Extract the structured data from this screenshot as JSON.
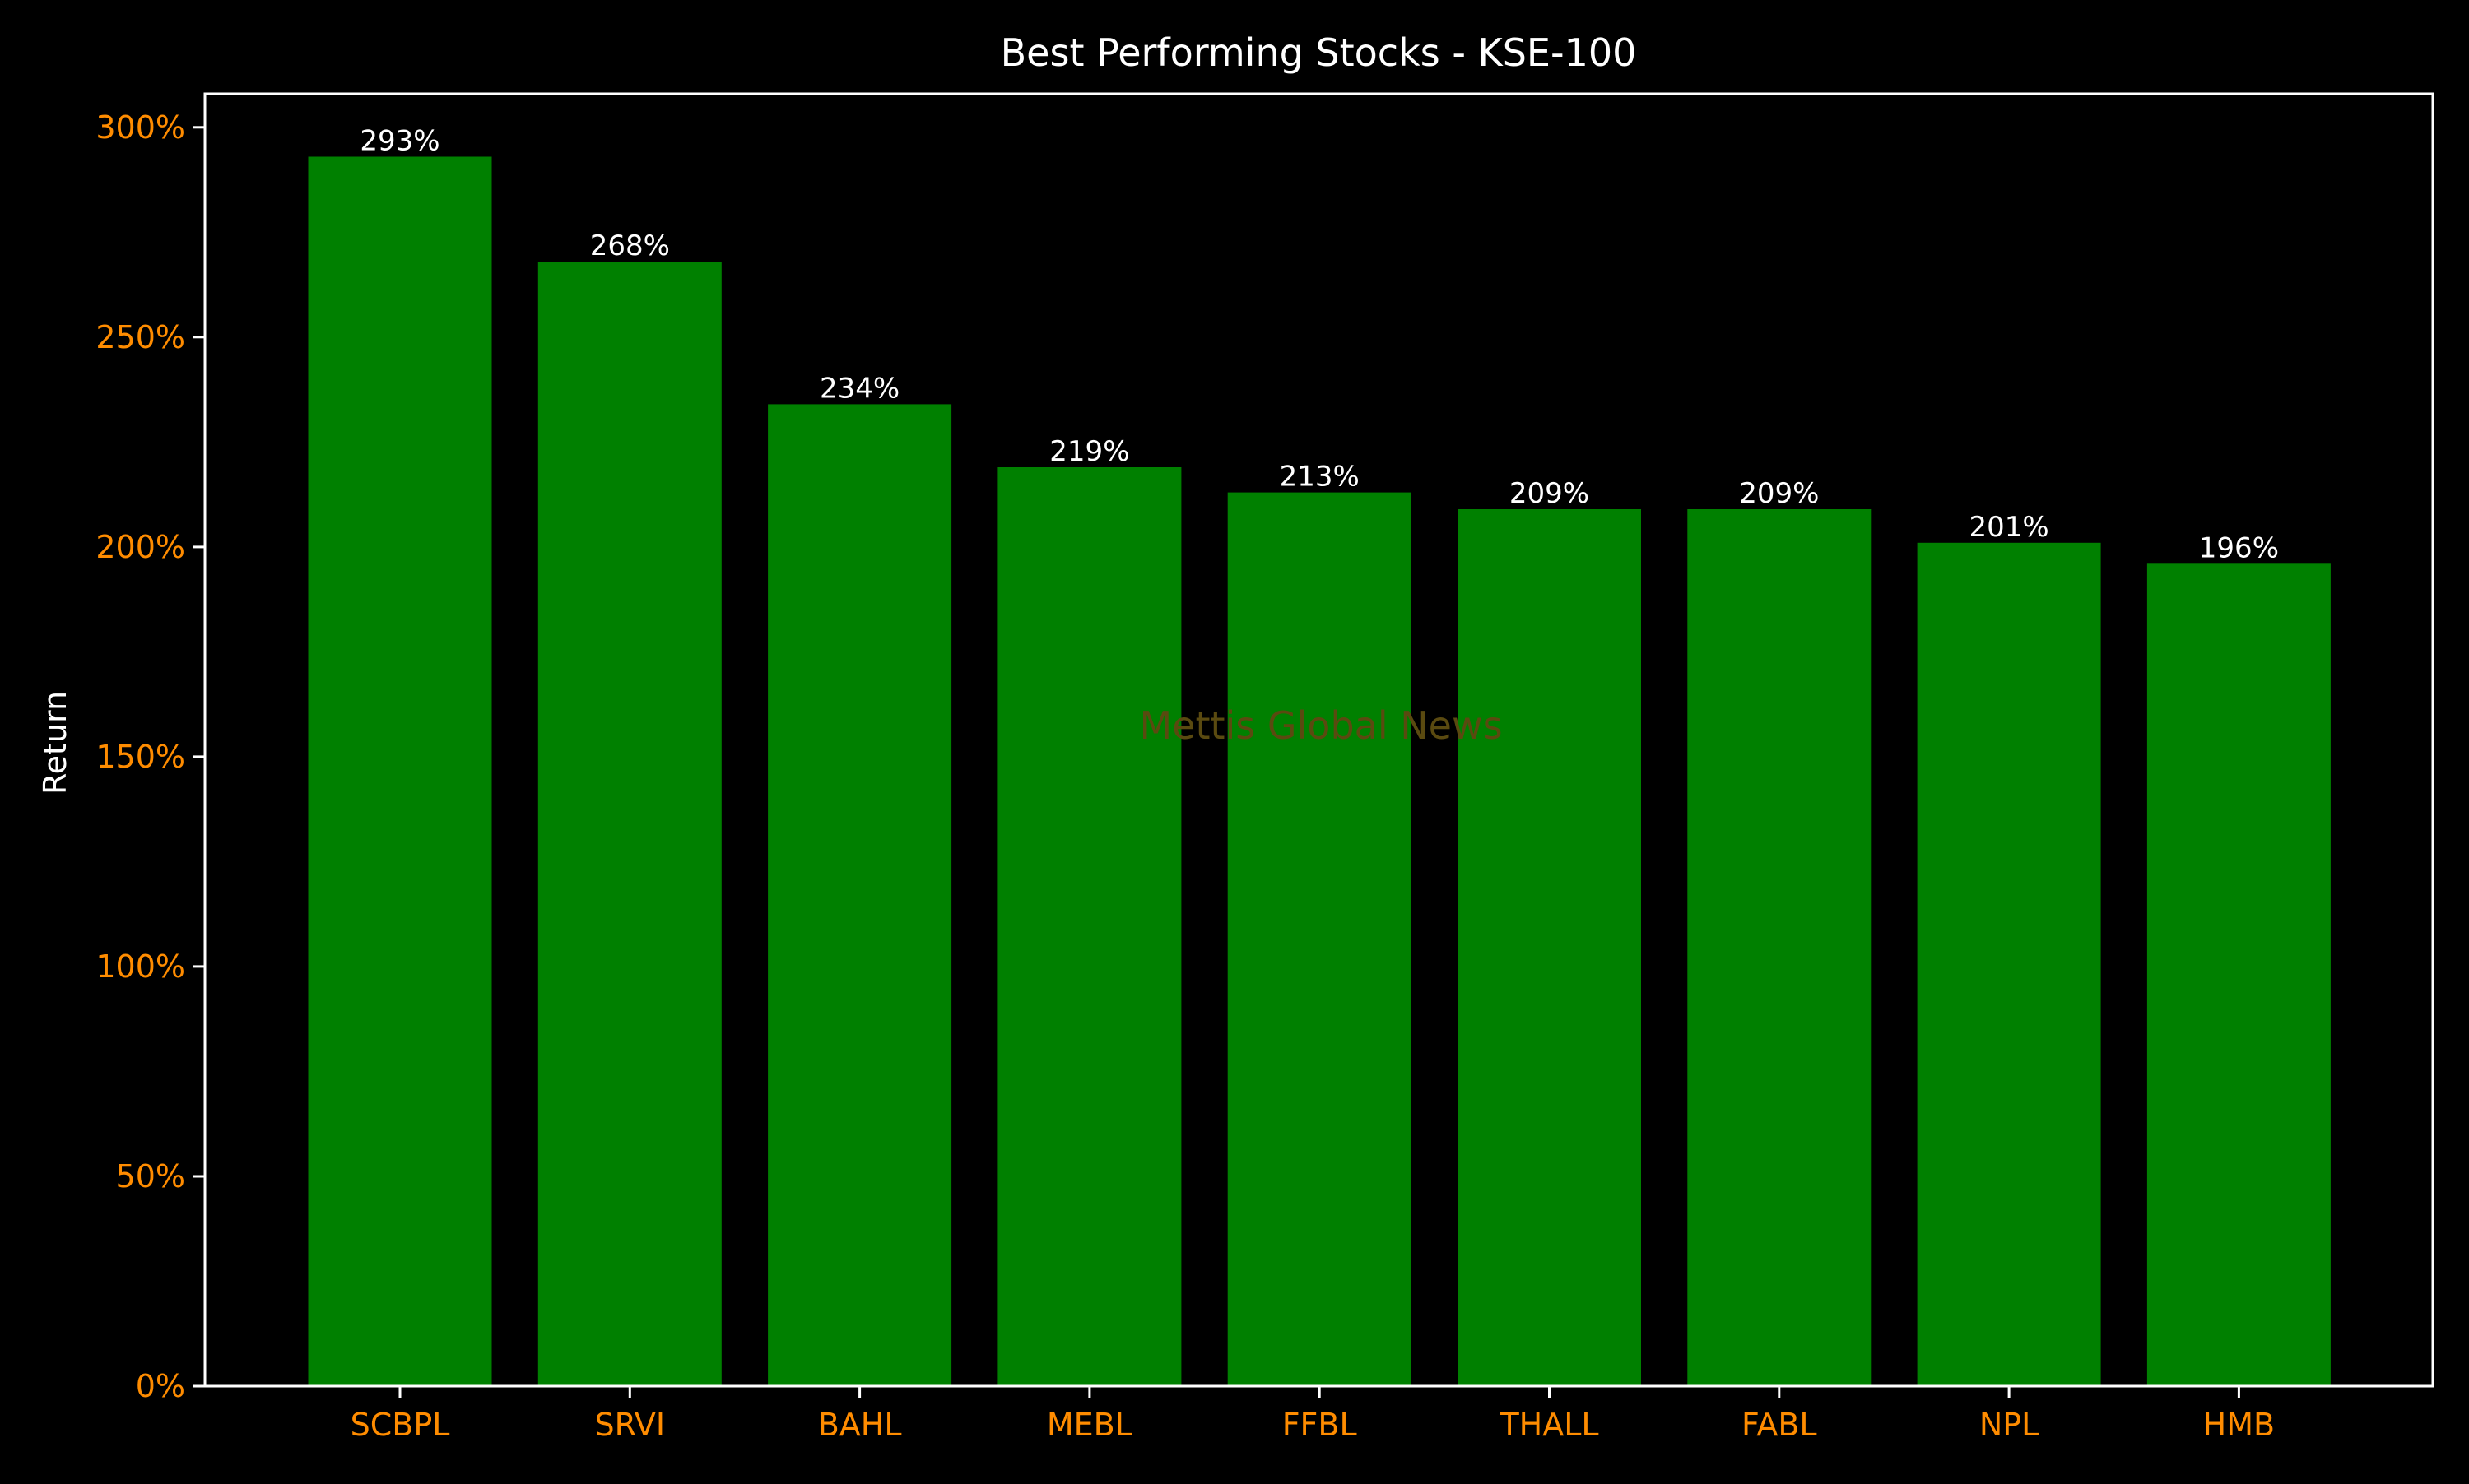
{
  "colors": {
    "background": "#000000",
    "bar": "#008000",
    "axis": "#ffffff",
    "tick_label": "#ff8c00",
    "title": "#ffffff",
    "data_label": "#ffffff",
    "watermark": "#5a4a10"
  },
  "watermark": "Mettis Global News",
  "chart_data": {
    "type": "bar",
    "title": "Best Performing Stocks - KSE-100",
    "xlabel": "",
    "ylabel": "Return",
    "categories": [
      "SCBPL",
      "SRVI",
      "BAHL",
      "MEBL",
      "FFBL",
      "THALL",
      "FABL",
      "NPL",
      "HMB"
    ],
    "values": [
      293,
      268,
      234,
      219,
      213,
      209,
      209,
      201,
      196
    ],
    "data_labels": [
      "293%",
      "268%",
      "234%",
      "219%",
      "213%",
      "209%",
      "209%",
      "201%",
      "196%"
    ],
    "ylim": [
      0,
      308
    ],
    "yticks": [
      0,
      50,
      100,
      150,
      200,
      250,
      300
    ],
    "ytick_labels": [
      "0%",
      "50%",
      "100%",
      "150%",
      "200%",
      "250%",
      "300%"
    ],
    "grid": false,
    "legend": "none"
  }
}
